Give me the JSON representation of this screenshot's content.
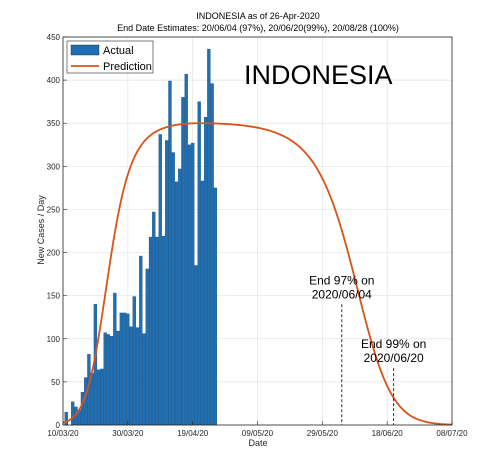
{
  "chart_data": {
    "type": "bar",
    "title": "INDONESIA as of 26-Apr-2020",
    "subtitle": "End Date Estimates: 20/06/04 (97%), 20/06/20(99%), 20/08/28 (100%)",
    "xlabel": "Date",
    "ylabel": "New Cases / Day",
    "watermark": "INDONESIA",
    "xlim": [
      "2020-03-10",
      "2020-07-08"
    ],
    "ylim": [
      0,
      450
    ],
    "yticks": [
      0,
      50,
      100,
      150,
      200,
      250,
      300,
      350,
      400,
      450
    ],
    "xticks": [
      {
        "date": "2020-03-10",
        "label": "10/03/20"
      },
      {
        "date": "2020-03-30",
        "label": "30/03/20"
      },
      {
        "date": "2020-04-19",
        "label": "19/04/20"
      },
      {
        "date": "2020-05-09",
        "label": "09/05/20"
      },
      {
        "date": "2020-05-29",
        "label": "29/05/20"
      },
      {
        "date": "2020-06-18",
        "label": "18/06/20"
      },
      {
        "date": "2020-07-08",
        "label": "08/07/20"
      }
    ],
    "grid": true,
    "legend_position": "top-left",
    "series": [
      {
        "name": "Actual",
        "type": "bar",
        "color": "#1f6fb4",
        "x": [
          "2020-03-11",
          "2020-03-12",
          "2020-03-13",
          "2020-03-14",
          "2020-03-15",
          "2020-03-16",
          "2020-03-17",
          "2020-03-18",
          "2020-03-19",
          "2020-03-20",
          "2020-03-21",
          "2020-03-22",
          "2020-03-23",
          "2020-03-24",
          "2020-03-25",
          "2020-03-26",
          "2020-03-27",
          "2020-03-28",
          "2020-03-29",
          "2020-03-30",
          "2020-03-31",
          "2020-04-01",
          "2020-04-02",
          "2020-04-03",
          "2020-04-04",
          "2020-04-05",
          "2020-04-06",
          "2020-04-07",
          "2020-04-08",
          "2020-04-09",
          "2020-04-10",
          "2020-04-11",
          "2020-04-12",
          "2020-04-13",
          "2020-04-14",
          "2020-04-15",
          "2020-04-16",
          "2020-04-17",
          "2020-04-18",
          "2020-04-19",
          "2020-04-20",
          "2020-04-21",
          "2020-04-22",
          "2020-04-23",
          "2020-04-24",
          "2020-04-25",
          "2020-04-26"
        ],
        "values": [
          15,
          0,
          27,
          21,
          17,
          38,
          55,
          82,
          60,
          140,
          64,
          65,
          107,
          105,
          103,
          153,
          109,
          130,
          130,
          129,
          114,
          149,
          113,
          196,
          106,
          181,
          218,
          247,
          218,
          337,
          219,
          330,
          399,
          316,
          282,
          297,
          380,
          407,
          325,
          327,
          185,
          375,
          283,
          357,
          436,
          396,
          275
        ]
      },
      {
        "name": "Prediction",
        "type": "line",
        "color": "#d95319",
        "peak_date": "2020-04-21",
        "peak_value": 350,
        "sigma_left_days": 10,
        "sigma_right_days": 17,
        "tail": 0.02
      }
    ],
    "annotations": [
      {
        "date": "2020-06-04",
        "line1": "End 97% on",
        "line2": "2020/06/04",
        "top_value": 140
      },
      {
        "date": "2020-06-20",
        "line1": "End 99% on",
        "line2": "2020/06/20",
        "top_value": 66
      }
    ]
  }
}
